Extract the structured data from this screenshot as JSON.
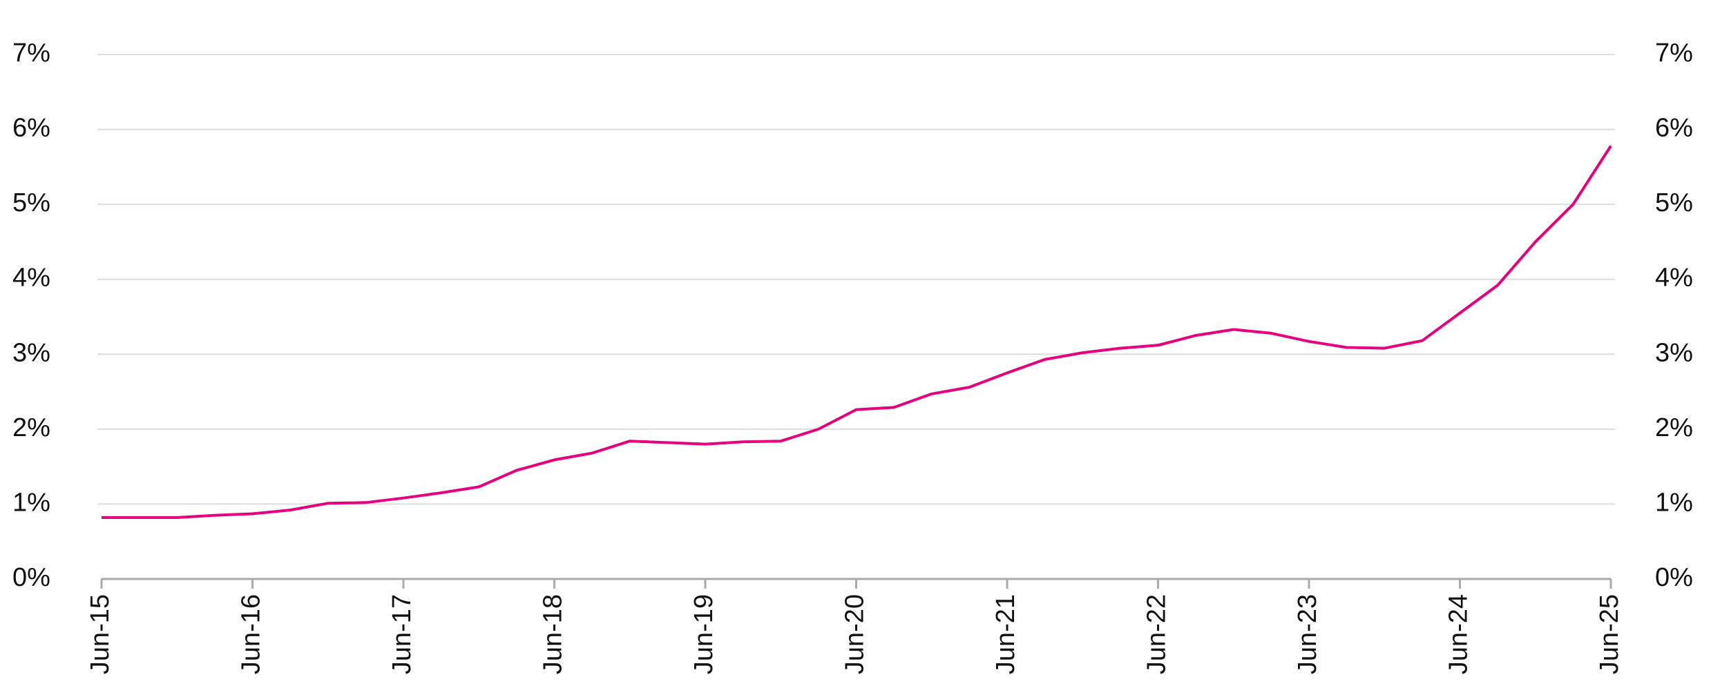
{
  "chart_data": {
    "type": "line",
    "categories": [
      "Jun-15",
      null,
      null,
      null,
      "Jun-16",
      null,
      null,
      null,
      "Jun-17",
      null,
      null,
      null,
      "Jun-18",
      null,
      null,
      null,
      "Jun-19",
      null,
      null,
      null,
      "Jun-20",
      null,
      null,
      null,
      "Jun-21",
      null,
      null,
      null,
      "Jun-22",
      null,
      null,
      null,
      "Jun-23",
      null,
      null,
      null,
      "Jun-24",
      null,
      null,
      null,
      "Jun-25"
    ],
    "series": [
      {
        "color": "#e6007e",
        "values": [
          0.82,
          0.82,
          0.82,
          0.85,
          0.87,
          0.92,
          1.01,
          1.02,
          1.08,
          1.15,
          1.23,
          1.45,
          1.59,
          1.68,
          1.84,
          1.82,
          1.8,
          1.83,
          1.84,
          2.0,
          2.26,
          2.29,
          2.47,
          2.56,
          2.75,
          2.93,
          3.02,
          3.08,
          3.12,
          3.25,
          3.33,
          3.28,
          3.17,
          3.09,
          3.08,
          3.18,
          3.55,
          3.92,
          4.5,
          5.0,
          5.78
        ]
      }
    ],
    "ylim": [
      0,
      7
    ],
    "yticks": [
      {
        "value": 0,
        "label": "0%"
      },
      {
        "value": 1,
        "label": "1%"
      },
      {
        "value": 2,
        "label": "2%"
      },
      {
        "value": 3,
        "label": "3%"
      },
      {
        "value": 4,
        "label": "4%"
      },
      {
        "value": 5,
        "label": "5%"
      },
      {
        "value": 6,
        "label": "6%"
      },
      {
        "value": 7,
        "label": "7%"
      }
    ],
    "y2lim": [
      0,
      7
    ],
    "y2ticks": [
      {
        "value": 0,
        "label": "0%"
      },
      {
        "value": 1,
        "label": "1%"
      },
      {
        "value": 2,
        "label": "2%"
      },
      {
        "value": 3,
        "label": "3%"
      },
      {
        "value": 4,
        "label": "4%"
      },
      {
        "value": 5,
        "label": "5%"
      },
      {
        "value": 6,
        "label": "6%"
      },
      {
        "value": 7,
        "label": "7%"
      }
    ],
    "grid": true
  }
}
